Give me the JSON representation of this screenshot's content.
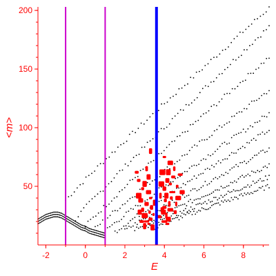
{
  "chart_data": {
    "type": "scatter",
    "title": "",
    "xlabel": "E",
    "ylabel": "<m>",
    "xlim": [
      -2.4,
      9.3
    ],
    "ylim": [
      0,
      203
    ],
    "x_ticks": [
      -2,
      0,
      2,
      4,
      6,
      8
    ],
    "y_ticks": [
      50,
      100,
      150,
      200
    ],
    "x_tick_labels": [
      "-2",
      "0",
      "2",
      "4",
      "6",
      "8"
    ],
    "y_tick_labels": [
      "50",
      "100",
      "150",
      "200"
    ],
    "grid": false,
    "legend": "none",
    "colors": {
      "axis": "#ff0000",
      "black_points": "#000000",
      "red_points": "#ff0000",
      "magenta_lines": "#cc00cc",
      "blue_line": "#0000ff"
    },
    "vertical_lines": [
      {
        "x": -1.0,
        "color": "#cc00cc"
      },
      {
        "x": 1.0,
        "color": "#cc00cc"
      },
      {
        "x": 3.6,
        "color": "#0000ff"
      }
    ],
    "series": [
      {
        "color": "#000000",
        "marker": "small dot",
        "branches": [
          {
            "x_start": -1.0,
            "x_end": 9.3,
            "y_at_x_start": 38,
            "y_at_x_end": 202
          },
          {
            "x_start": -0.5,
            "x_end": 9.3,
            "y_at_x_start": 22,
            "y_at_x_end": 186
          },
          {
            "x_start": 0.0,
            "x_end": 9.3,
            "y_at_x_start": 16,
            "y_at_x_end": 160
          },
          {
            "x_start": 0.5,
            "x_end": 9.3,
            "y_at_x_start": 14,
            "y_at_x_end": 132
          },
          {
            "x_start": 1.0,
            "x_end": 9.3,
            "y_at_x_start": 12,
            "y_at_x_end": 112
          },
          {
            "x_start": 1.5,
            "x_end": 9.3,
            "y_at_x_start": 11,
            "y_at_x_end": 98
          },
          {
            "x_start": 2.0,
            "x_end": 9.3,
            "y_at_x_start": 12,
            "y_at_x_end": 82
          },
          {
            "x_start": 2.5,
            "x_end": 9.3,
            "y_at_x_start": 13,
            "y_at_x_end": 68
          },
          {
            "x_start": 3.0,
            "x_end": 9.3,
            "y_at_x_start": 14,
            "y_at_x_end": 58
          },
          {
            "x_start": 3.5,
            "x_end": 9.3,
            "y_at_x_start": 15,
            "y_at_x_end": 50
          }
        ],
        "low_energy_arc": [
          {
            "x": -2.4,
            "y": 20
          },
          {
            "x": -2.2,
            "y": 22
          },
          {
            "x": -2.0,
            "y": 24
          },
          {
            "x": -1.8,
            "y": 25
          },
          {
            "x": -1.6,
            "y": 26
          },
          {
            "x": -1.4,
            "y": 26
          },
          {
            "x": -1.2,
            "y": 25
          },
          {
            "x": -1.0,
            "y": 23
          },
          {
            "x": -0.8,
            "y": 21
          },
          {
            "x": -0.6,
            "y": 19
          },
          {
            "x": -0.4,
            "y": 17
          },
          {
            "x": -0.2,
            "y": 15
          },
          {
            "x": 0.0,
            "y": 14
          },
          {
            "x": 0.2,
            "y": 12
          },
          {
            "x": 0.4,
            "y": 11
          },
          {
            "x": 0.6,
            "y": 10
          },
          {
            "x": 0.8,
            "y": 9
          },
          {
            "x": 1.0,
            "y": 8
          }
        ]
      },
      {
        "color": "#ff0000",
        "marker": "large blob",
        "points": [
          {
            "x": 3.2,
            "y": 18
          },
          {
            "x": 3.1,
            "y": 20
          },
          {
            "x": 3.3,
            "y": 22
          },
          {
            "x": 3.0,
            "y": 25
          },
          {
            "x": 3.25,
            "y": 28
          },
          {
            "x": 3.35,
            "y": 32
          },
          {
            "x": 3.1,
            "y": 35
          },
          {
            "x": 3.3,
            "y": 40
          },
          {
            "x": 3.2,
            "y": 45
          },
          {
            "x": 2.9,
            "y": 30
          },
          {
            "x": 2.8,
            "y": 38
          },
          {
            "x": 2.9,
            "y": 48
          },
          {
            "x": 2.7,
            "y": 55
          },
          {
            "x": 2.85,
            "y": 20
          },
          {
            "x": 3.45,
            "y": 26
          },
          {
            "x": 3.5,
            "y": 36
          },
          {
            "x": 2.6,
            "y": 62
          },
          {
            "x": 2.75,
            "y": 28
          },
          {
            "x": 3.0,
            "y": 16
          },
          {
            "x": 3.4,
            "y": 15
          },
          {
            "x": 4.0,
            "y": 20
          },
          {
            "x": 4.2,
            "y": 22
          },
          {
            "x": 4.1,
            "y": 25
          },
          {
            "x": 3.95,
            "y": 28
          },
          {
            "x": 4.3,
            "y": 30
          },
          {
            "x": 4.0,
            "y": 32
          },
          {
            "x": 4.25,
            "y": 35
          },
          {
            "x": 4.05,
            "y": 38
          },
          {
            "x": 4.35,
            "y": 40
          },
          {
            "x": 4.1,
            "y": 42
          },
          {
            "x": 4.4,
            "y": 45
          },
          {
            "x": 4.0,
            "y": 48
          },
          {
            "x": 4.3,
            "y": 52
          },
          {
            "x": 4.15,
            "y": 55
          },
          {
            "x": 4.45,
            "y": 58
          },
          {
            "x": 4.2,
            "y": 62
          },
          {
            "x": 4.5,
            "y": 65
          },
          {
            "x": 4.3,
            "y": 70
          },
          {
            "x": 4.6,
            "y": 35
          },
          {
            "x": 4.65,
            "y": 50
          },
          {
            "x": 4.8,
            "y": 60
          },
          {
            "x": 4.9,
            "y": 45
          },
          {
            "x": 3.9,
            "y": 62
          },
          {
            "x": 4.15,
            "y": 18
          },
          {
            "x": 3.8,
            "y": 42
          },
          {
            "x": 3.85,
            "y": 52
          },
          {
            "x": 3.9,
            "y": 30
          },
          {
            "x": 3.75,
            "y": 24
          },
          {
            "x": 4.55,
            "y": 28
          },
          {
            "x": 4.7,
            "y": 40
          },
          {
            "x": 3.1,
            "y": 65
          },
          {
            "x": 4.0,
            "y": 75
          },
          {
            "x": 3.3,
            "y": 80
          },
          {
            "x": 3.2,
            "y": 58
          },
          {
            "x": 3.0,
            "y": 52
          },
          {
            "x": 2.7,
            "y": 42
          }
        ]
      }
    ]
  }
}
